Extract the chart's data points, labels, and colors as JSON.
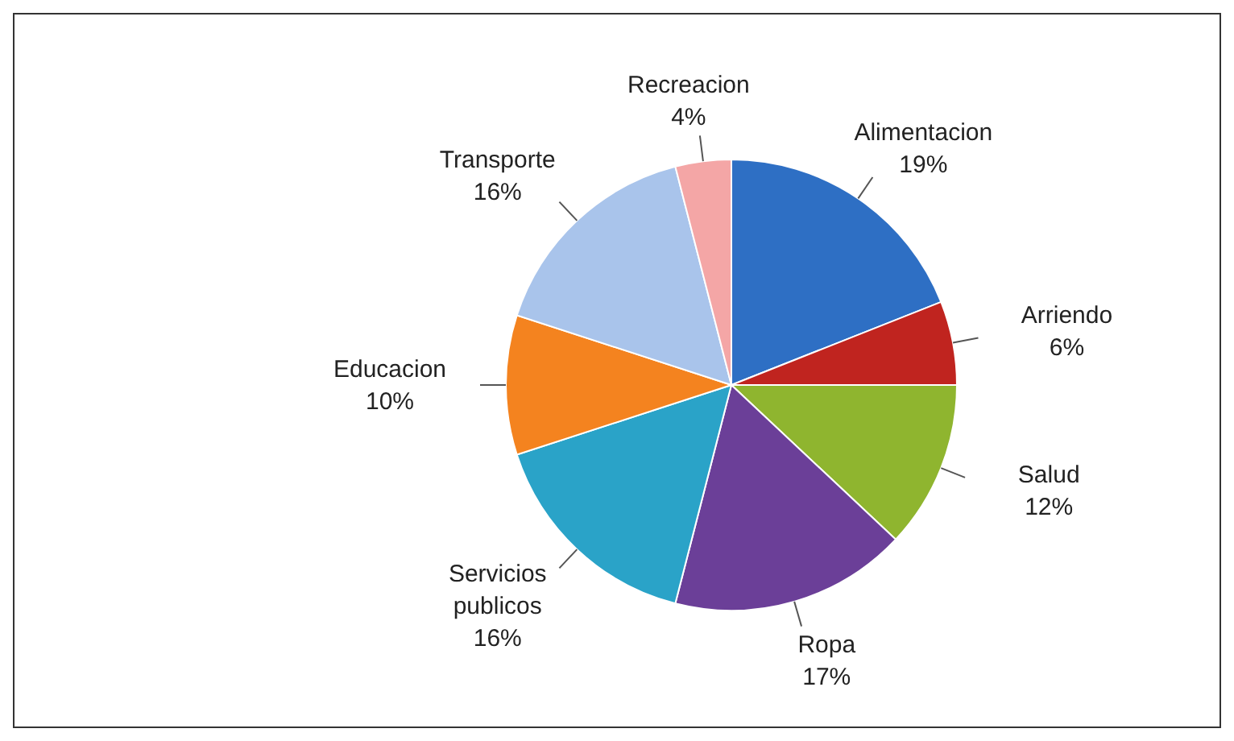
{
  "chart_data": {
    "type": "pie",
    "categories": [
      "Alimentacion",
      "Arriendo",
      "Salud",
      "Ropa",
      "Servicios publicos",
      "Educacion",
      "Transporte",
      "Recreacion"
    ],
    "values": [
      19,
      6,
      12,
      17,
      16,
      10,
      16,
      4
    ],
    "colors": [
      "#2e6fc4",
      "#c0241f",
      "#8fb52f",
      "#6b3f98",
      "#2aa3c8",
      "#f4831f",
      "#a9c4eb",
      "#f4a6a6"
    ],
    "value_labels": [
      "19%",
      "6%",
      "12%",
      "17%",
      "16%",
      "10%",
      "16%",
      "4%"
    ],
    "legend": false
  }
}
